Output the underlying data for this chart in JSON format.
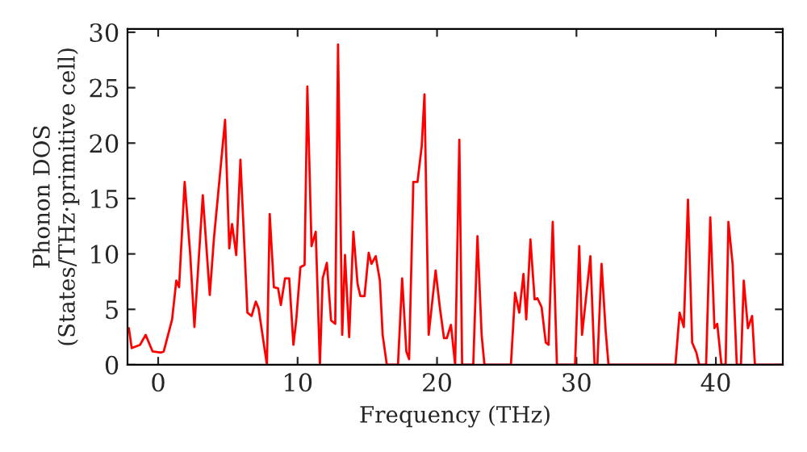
{
  "chart_data": {
    "type": "line",
    "xlabel": "Frequency (THz)",
    "ylabel": "Phonon DOS\n(States/THz·primitive cell)",
    "xlim": [
      -2.2,
      44.8
    ],
    "ylim": [
      0,
      30.3
    ],
    "xticks": [
      0,
      10,
      20,
      30,
      40
    ],
    "yticks": [
      0,
      5,
      10,
      15,
      20,
      25,
      30
    ],
    "grid": false,
    "series": [
      {
        "color": "#ff0000",
        "x": [
          -2.1,
          -1.9,
          -1.3,
          -0.9,
          -0.4,
          0.2,
          0.4,
          1.0,
          1.3,
          1.5,
          1.9,
          2.3,
          2.6,
          3.2,
          3.7,
          4.0,
          4.8,
          5.1,
          5.3,
          5.6,
          5.9,
          6.4,
          6.7,
          7.0,
          7.2,
          7.8,
          8.0,
          8.3,
          8.6,
          8.8,
          9.1,
          9.4,
          9.7,
          9.9,
          10.2,
          10.5,
          10.7,
          11.0,
          11.3,
          11.6,
          11.8,
          12.1,
          12.4,
          12.7,
          12.9,
          13.2,
          13.4,
          13.7,
          14.0,
          14.3,
          14.5,
          14.8,
          15.1,
          15.3,
          15.6,
          15.9,
          16.1,
          16.4,
          17.2,
          17.5,
          17.8,
          18.0,
          18.3,
          18.6,
          18.9,
          19.1,
          19.4,
          19.7,
          19.9,
          20.2,
          20.5,
          20.7,
          21.0,
          21.3,
          21.6,
          21.8,
          22.6,
          22.9,
          23.2,
          23.4,
          25.3,
          25.6,
          25.9,
          26.2,
          26.4,
          26.7,
          27.0,
          27.2,
          27.5,
          27.8,
          28.0,
          28.3,
          28.6,
          29.9,
          30.2,
          30.4,
          30.7,
          31.0,
          31.3,
          31.5,
          31.8,
          32.1,
          32.3,
          37.1,
          37.4,
          37.7,
          38.0,
          38.3,
          38.6,
          38.8,
          39.3,
          39.6,
          39.9,
          40.1,
          40.4,
          40.7,
          40.9,
          41.2,
          41.5,
          41.8,
          42.0,
          42.3,
          42.6,
          42.8,
          44.8
        ],
        "values": [
          3.3,
          1.5,
          1.8,
          2.7,
          1.2,
          1.1,
          1.2,
          4.1,
          7.6,
          7.0,
          16.5,
          9.9,
          3.4,
          15.3,
          6.3,
          11.4,
          22.1,
          10.5,
          12.7,
          9.9,
          18.5,
          4.7,
          4.4,
          5.7,
          5.1,
          0,
          13.6,
          7.0,
          6.9,
          5.4,
          7.8,
          7.8,
          1.8,
          4.0,
          8.8,
          9.0,
          25.1,
          10.7,
          12.0,
          0,
          7.8,
          9.2,
          4.0,
          3.7,
          28.9,
          2.7,
          9.9,
          2.5,
          12.0,
          7.3,
          6.2,
          6.2,
          10.1,
          9.1,
          9.8,
          7.6,
          2.7,
          0,
          0,
          7.8,
          1.2,
          0.5,
          16.5,
          16.5,
          19.7,
          24.4,
          2.7,
          6.2,
          8.5,
          5.2,
          2.4,
          2.4,
          3.6,
          0,
          20.3,
          0,
          0,
          11.6,
          2.7,
          0,
          0,
          6.5,
          4.7,
          8.2,
          4.1,
          11.3,
          5.9,
          6.0,
          5.2,
          2.0,
          1.8,
          12.9,
          0,
          0,
          10.7,
          2.7,
          6.2,
          9.8,
          0,
          0,
          9.1,
          3.0,
          0,
          0,
          4.7,
          3.4,
          14.9,
          2.0,
          1.1,
          0,
          0,
          13.3,
          3.3,
          3.7,
          0,
          0,
          12.9,
          9.1,
          0,
          0,
          7.6,
          3.3,
          4.4,
          0,
          0
        ]
      }
    ]
  }
}
